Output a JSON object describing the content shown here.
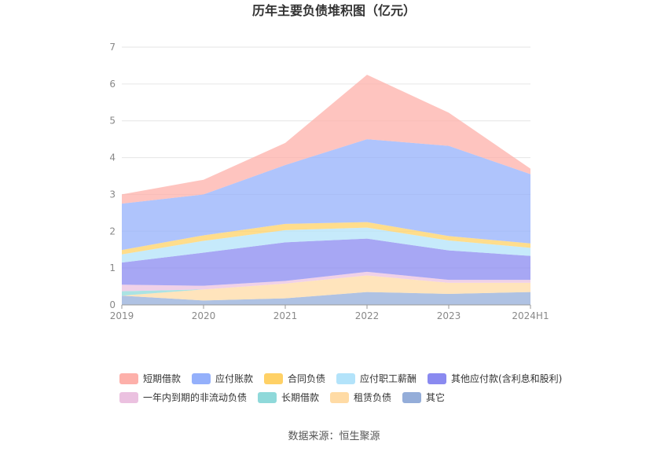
{
  "chart_data": {
    "type": "area",
    "stacked": true,
    "title": "历年主要负债堆积图（亿元）",
    "categories": [
      "2019",
      "2020",
      "2021",
      "2022",
      "2023",
      "2024H1"
    ],
    "y_ticks": [
      "0",
      "1",
      "2",
      "3",
      "4",
      "5",
      "6",
      "7"
    ],
    "ylim": [
      0,
      7
    ],
    "grid": true,
    "legend_position": "bottom",
    "series": [
      {
        "name": "其它",
        "color": "#94add9",
        "values": [
          0.25,
          0.12,
          0.18,
          0.35,
          0.3,
          0.35
        ]
      },
      {
        "name": "租赁负债",
        "color": "#ffdba5",
        "values": [
          0.0,
          0.3,
          0.4,
          0.45,
          0.3,
          0.25
        ]
      },
      {
        "name": "长期借款",
        "color": "#8fd9da",
        "values": [
          0.12,
          0.0,
          0.0,
          0.0,
          0.0,
          0.0
        ]
      },
      {
        "name": "一年内到期的非流动负债",
        "color": "#ebc1e0",
        "values": [
          0.18,
          0.1,
          0.07,
          0.1,
          0.08,
          0.08
        ]
      },
      {
        "name": "其他应付款(含利息和股利)",
        "color": "#8a8af0",
        "values": [
          0.6,
          0.9,
          1.05,
          0.9,
          0.8,
          0.65
        ]
      },
      {
        "name": "应付职工薪酬",
        "color": "#b3e3fa",
        "values": [
          0.22,
          0.32,
          0.33,
          0.3,
          0.27,
          0.22
        ]
      },
      {
        "name": "合同负债",
        "color": "#ffd166",
        "values": [
          0.12,
          0.15,
          0.17,
          0.15,
          0.12,
          0.12
        ]
      },
      {
        "name": "应付账款",
        "color": "#94b0fb",
        "values": [
          1.26,
          1.11,
          1.6,
          2.25,
          2.45,
          1.88
        ]
      },
      {
        "name": "短期借款",
        "color": "#fdb0aa",
        "values": [
          0.25,
          0.4,
          0.6,
          1.75,
          0.9,
          0.15
        ]
      }
    ],
    "legend_order": [
      "短期借款",
      "应付账款",
      "合同负债",
      "应付职工薪酬",
      "其他应付款(含利息和股利)",
      "一年内到期的非流动负债",
      "长期借款",
      "租赁负债",
      "其它"
    ]
  },
  "footer": {
    "source": "数据来源：恒生聚源"
  }
}
